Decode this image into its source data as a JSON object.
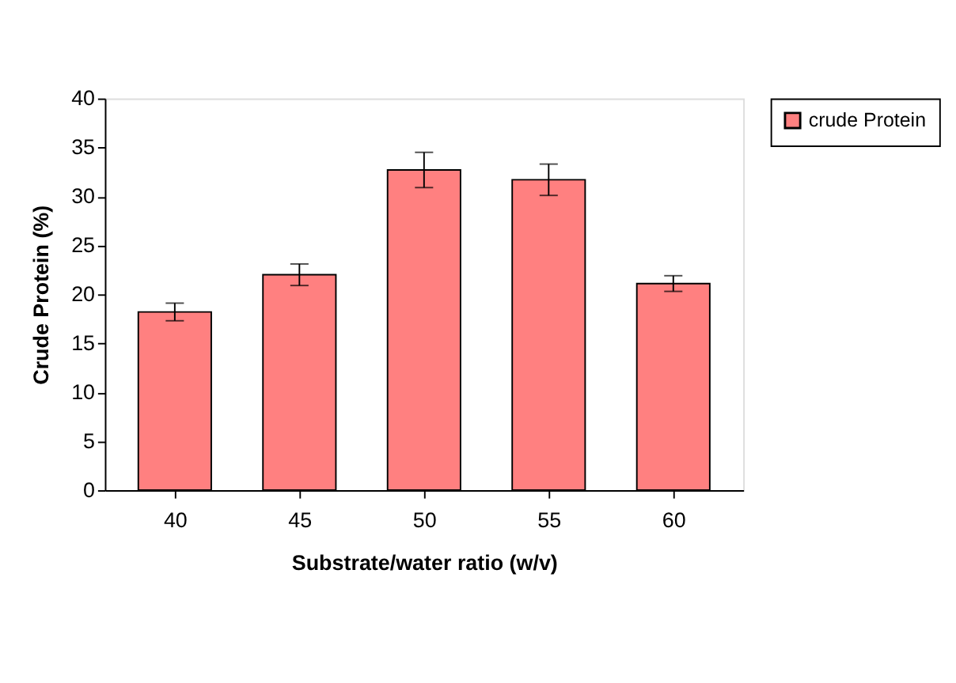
{
  "chart_data": {
    "type": "bar",
    "xlabel": "Substrate/water ratio (w/v)",
    "ylabel": "Crude Protein (%)",
    "categories": [
      "40",
      "45",
      "50",
      "55",
      "60"
    ],
    "series": [
      {
        "name": "crude Protein",
        "color": "#ff8080",
        "values": [
          18.2,
          22.0,
          32.7,
          31.7,
          21.1
        ],
        "errors": [
          0.9,
          1.1,
          1.8,
          1.6,
          0.8
        ]
      }
    ],
    "ylim": [
      0,
      40
    ],
    "yticks": [
      0,
      5,
      10,
      15,
      20,
      25,
      30,
      35,
      40
    ],
    "grid": false,
    "legend": "right"
  }
}
